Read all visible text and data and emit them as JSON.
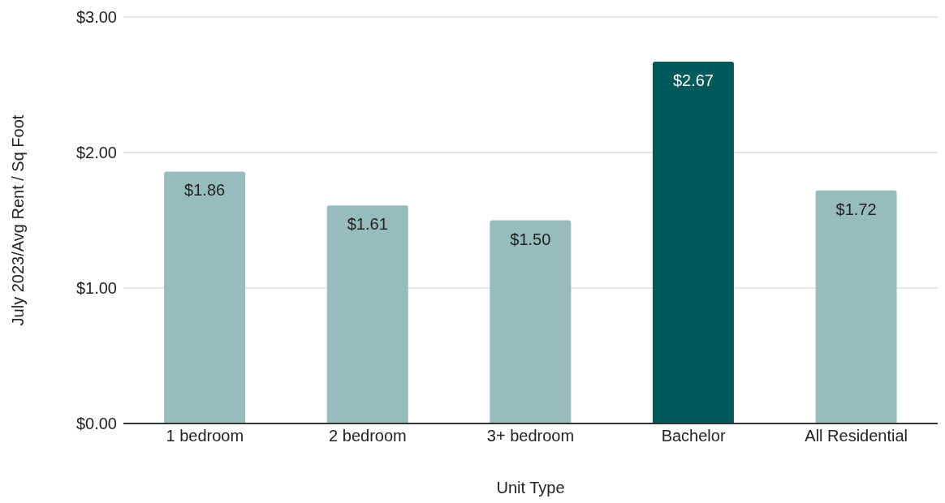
{
  "chart_data": {
    "type": "bar",
    "xlabel": "Unit Type",
    "ylabel": "July 2023/Avg Rent / Sq Foot",
    "categories": [
      "1 bedroom",
      "2 bedroom",
      "3+ bedroom",
      "Bachelor",
      "All Residential"
    ],
    "values": [
      1.86,
      1.61,
      1.5,
      2.67,
      1.72
    ],
    "colors": [
      "#97bcbd",
      "#97bcbd",
      "#97bcbd",
      "#005a5b",
      "#97bcbd"
    ],
    "value_labels": [
      "$1.86",
      "$1.61",
      "$1.50",
      "$2.67",
      "$1.72"
    ],
    "ylim": [
      0,
      3
    ],
    "yticks": [
      {
        "value": 0,
        "label": "$0.00"
      },
      {
        "value": 1,
        "label": "$1.00"
      },
      {
        "value": 2,
        "label": "$2.00"
      },
      {
        "value": 3,
        "label": "$3.00"
      }
    ],
    "grid": "y"
  }
}
